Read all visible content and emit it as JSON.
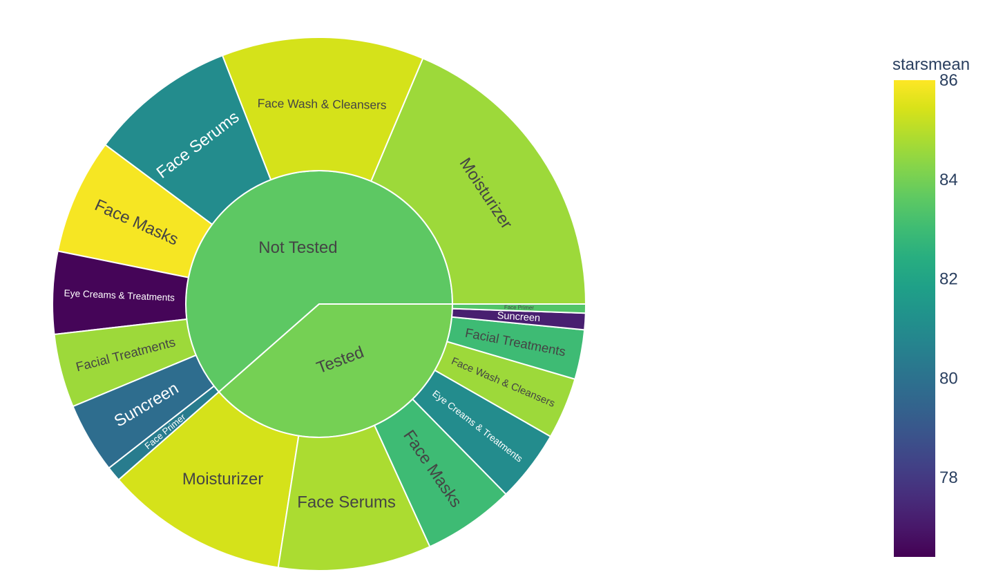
{
  "chart_data": {
    "type": "sunburst",
    "colorbar": {
      "title": "starsmean",
      "min": 76.4,
      "max": 86.0,
      "ticks": [
        78,
        80,
        82,
        84,
        86
      ]
    },
    "colorscale": "Viridis",
    "sectors": [
      {
        "label": "Not Tested",
        "starsmean": 83.6,
        "children": [
          {
            "label": "Moisturizer",
            "size": 20.5,
            "starsmean": 84.6
          },
          {
            "label": "Face Wash & Cleansers",
            "size": 13.5,
            "starsmean": 85.4
          },
          {
            "label": "Face Serums",
            "size": 9.8,
            "starsmean": 81.0
          },
          {
            "label": "Face Masks",
            "size": 7.7,
            "starsmean": 85.9
          },
          {
            "label": "Eye Creams & Treatments",
            "size": 5.5,
            "starsmean": 76.5
          },
          {
            "label": "Facial Treatments",
            "size": 4.9,
            "starsmean": 84.6
          },
          {
            "label": "Suncreen",
            "size": 4.7,
            "starsmean": 79.8
          },
          {
            "label": "Face Primer",
            "size": 1.0,
            "starsmean": 80.4
          }
        ]
      },
      {
        "label": "Tested",
        "starsmean": 84.0,
        "children": [
          {
            "label": "Moisturizer",
            "size": 12.2,
            "starsmean": 85.4
          },
          {
            "label": "Face Serums",
            "size": 10.2,
            "starsmean": 84.8
          },
          {
            "label": "Face Masks",
            "size": 6.1,
            "starsmean": 83.0
          },
          {
            "label": "Eye Creams & Treatments",
            "size": 4.8,
            "starsmean": 81.0
          },
          {
            "label": "Face Wash & Cleansers",
            "size": 4.1,
            "starsmean": 84.6
          },
          {
            "label": "Facial Treatments",
            "size": 3.3,
            "starsmean": 83.0
          },
          {
            "label": "Suncreen",
            "size": 1.1,
            "starsmean": 77.2
          },
          {
            "label": "Face Primer",
            "size": 0.6,
            "starsmean": 83.4
          }
        ]
      }
    ]
  }
}
